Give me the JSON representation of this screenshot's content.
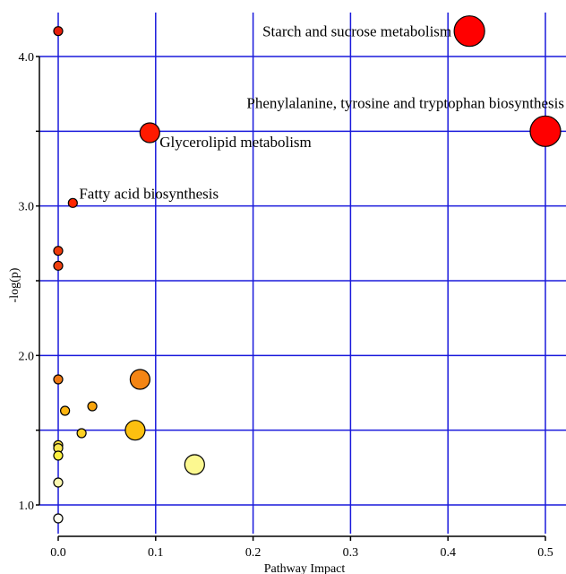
{
  "chart_data": {
    "type": "scatter",
    "xlabel": "Pathway Impact",
    "ylabel": "-log(p)",
    "xlim": [
      0.0,
      0.5
    ],
    "ylim": [
      0.9,
      4.2
    ],
    "x_ticks": [
      {
        "value": 0.0,
        "label": "0.0"
      },
      {
        "value": 0.1,
        "label": "0.1"
      },
      {
        "value": 0.2,
        "label": "0.2"
      },
      {
        "value": 0.3,
        "label": "0.3"
      },
      {
        "value": 0.4,
        "label": "0.4"
      },
      {
        "value": 0.5,
        "label": "0.5"
      }
    ],
    "y_ticks": [
      {
        "value": 1.0,
        "label": "1.0"
      },
      {
        "value": 1.5,
        "label": ""
      },
      {
        "value": 2.0,
        "label": "2.0"
      },
      {
        "value": 2.5,
        "label": ""
      },
      {
        "value": 3.0,
        "label": "3.0"
      },
      {
        "value": 3.5,
        "label": ""
      },
      {
        "value": 4.0,
        "label": "4.0"
      }
    ],
    "grid": true,
    "grid_color": "#1a1adc",
    "points": [
      {
        "x": 0.0,
        "y": 4.17,
        "impact_size": "small",
        "color": "#e81e0a",
        "label": ""
      },
      {
        "x": 0.422,
        "y": 4.17,
        "impact_size": "large",
        "color": "#ff0000",
        "label": "Starch and sucrose metabolism"
      },
      {
        "x": 0.5,
        "y": 3.5,
        "impact_size": "large",
        "color": "#ff0000",
        "label": "Phenylalanine, tyrosine and tryptophan biosynthesis"
      },
      {
        "x": 0.094,
        "y": 3.49,
        "impact_size": "medium",
        "color": "#ff1a00",
        "label": "Glycerolipid metabolism"
      },
      {
        "x": 0.015,
        "y": 3.02,
        "impact_size": "small",
        "color": "#ff2500",
        "label": "Fatty acid biosynthesis"
      },
      {
        "x": 0.0,
        "y": 2.7,
        "impact_size": "small",
        "color": "#f03a0a",
        "label": ""
      },
      {
        "x": 0.0,
        "y": 2.6,
        "impact_size": "small",
        "color": "#f04010",
        "label": ""
      },
      {
        "x": 0.0,
        "y": 1.84,
        "impact_size": "small",
        "color": "#f07a14",
        "label": ""
      },
      {
        "x": 0.084,
        "y": 1.84,
        "impact_size": "medium",
        "color": "#f48514",
        "label": ""
      },
      {
        "x": 0.035,
        "y": 1.66,
        "impact_size": "small",
        "color": "#f8a40c",
        "label": ""
      },
      {
        "x": 0.007,
        "y": 1.63,
        "impact_size": "small",
        "color": "#fcb410",
        "label": ""
      },
      {
        "x": 0.079,
        "y": 1.5,
        "impact_size": "medium",
        "color": "#fcc010",
        "label": ""
      },
      {
        "x": 0.024,
        "y": 1.48,
        "impact_size": "small",
        "color": "#fcd024",
        "label": ""
      },
      {
        "x": 0.0,
        "y": 1.4,
        "impact_size": "small",
        "color": "#fce040",
        "label": ""
      },
      {
        "x": 0.0,
        "y": 1.38,
        "impact_size": "small",
        "color": "#fce850",
        "label": ""
      },
      {
        "x": 0.0,
        "y": 1.33,
        "impact_size": "small",
        "color": "#fcf040",
        "label": ""
      },
      {
        "x": 0.14,
        "y": 1.27,
        "impact_size": "medium",
        "color": "#fcf890",
        "label": ""
      },
      {
        "x": 0.0,
        "y": 1.15,
        "impact_size": "small",
        "color": "#fcf8b0",
        "label": ""
      },
      {
        "x": 0.0,
        "y": 0.91,
        "impact_size": "small",
        "color": "#fdfdf0",
        "label": ""
      }
    ]
  }
}
